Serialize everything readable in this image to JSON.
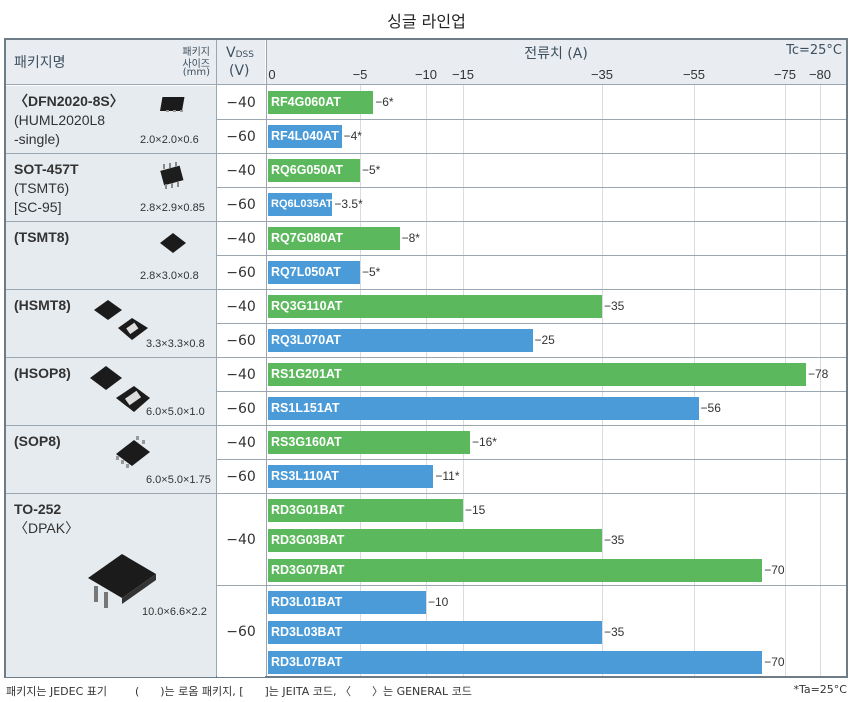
{
  "title": "싱글 라인업",
  "header": {
    "package_name": "패키지명",
    "package_size_line1": "패키지",
    "package_size_line2": "사이즈",
    "package_size_unit": "(mm)",
    "vdss_label": "V",
    "vdss_sub": "DSS",
    "vdss_unit": "(V)",
    "current_label": "전류치 (A)",
    "tc_note": "Tc=25°C"
  },
  "packages": [
    {
      "name_bold": "〈DFN2020-8S〉",
      "name_rest": [
        "(HUML2020L8",
        " -single)"
      ],
      "size": "2.0×2.0×0.6",
      "icon": "dfn-chip-icon"
    },
    {
      "name_bold": "SOT-457T",
      "name_rest": [
        "(TSMT6)",
        "[SC-95]"
      ],
      "size": "2.8×2.9×0.85",
      "icon": "sot-chip-icon"
    },
    {
      "name_bold": "(TSMT8)",
      "name_rest": [],
      "size": "2.8×3.0×0.8",
      "icon": "tsmt-chip-icon"
    },
    {
      "name_bold": "(HSMT8)",
      "name_rest": [],
      "size": "3.3×3.3×0.8",
      "icon": "hsmt-chip-icon"
    },
    {
      "name_bold": "(HSOP8)",
      "name_rest": [],
      "size": "6.0×5.0×1.0",
      "icon": "hsop-chip-icon"
    },
    {
      "name_bold": "(SOP8)",
      "name_rest": [],
      "size": "6.0×5.0×1.75",
      "icon": "sop-chip-icon"
    },
    {
      "name_bold": "TO-252",
      "name_rest": [
        "〈DPAK〉"
      ],
      "size": "10.0×6.6×2.2",
      "icon": "to252-chip-icon"
    }
  ],
  "vdss_values": [
    "−40",
    "−60",
    "−40",
    "−60",
    "−40",
    "−60",
    "−40",
    "−60",
    "−40",
    "−60",
    "−40",
    "−60",
    "−40",
    "−60"
  ],
  "footer": {
    "left": "패키지는 JEDEC 표기        (      )는 로옴 패키지, [      ]는 JEITA 코드, 〈      〉는 GENERAL 코드",
    "right": "*Ta=25°C"
  },
  "colors": {
    "green": "#5cb85c",
    "blue": "#4a9bd8"
  },
  "chart_data": {
    "type": "bar",
    "orientation": "horizontal",
    "xlabel": "전류치 (A)",
    "x_ticks": [
      "0",
      "−5",
      "−10",
      "−15",
      "−35",
      "−55",
      "−75",
      "−80"
    ],
    "x_tick_values": [
      0,
      -5,
      -10,
      -15,
      -35,
      -55,
      -75,
      -80
    ],
    "bars": [
      {
        "part": "RF4G060AT",
        "vdss": -40,
        "value": -6,
        "label": "−6*",
        "color": "green"
      },
      {
        "part": "RF4L040AT",
        "vdss": -60,
        "value": -4,
        "label": "−4*",
        "color": "blue"
      },
      {
        "part": "RQ6G050AT",
        "vdss": -40,
        "value": -5,
        "label": "−5*",
        "color": "green"
      },
      {
        "part": "RQ6L035AT",
        "vdss": -60,
        "value": -3.5,
        "label": "−3.5*",
        "color": "blue"
      },
      {
        "part": "RQ7G080AT",
        "vdss": -40,
        "value": -8,
        "label": "−8*",
        "color": "green"
      },
      {
        "part": "RQ7L050AT",
        "vdss": -60,
        "value": -5,
        "label": "−5*",
        "color": "blue"
      },
      {
        "part": "RQ3G110AT",
        "vdss": -40,
        "value": -35,
        "label": "−35",
        "color": "green"
      },
      {
        "part": "RQ3L070AT",
        "vdss": -60,
        "value": -25,
        "label": "−25",
        "color": "blue"
      },
      {
        "part": "RS1G201AT",
        "vdss": -40,
        "value": -78,
        "label": "−78",
        "color": "green"
      },
      {
        "part": "RS1L151AT",
        "vdss": -60,
        "value": -56,
        "label": "−56",
        "color": "blue"
      },
      {
        "part": "RS3G160AT",
        "vdss": -40,
        "value": -16,
        "label": "−16*",
        "color": "green"
      },
      {
        "part": "RS3L110AT",
        "vdss": -60,
        "value": -11,
        "label": "−11*",
        "color": "blue"
      },
      {
        "part": "RD3G01BAT",
        "vdss": -40,
        "value": -15,
        "label": "−15",
        "color": "green"
      },
      {
        "part": "RD3G03BAT",
        "vdss": -40,
        "value": -35,
        "label": "−35",
        "color": "green"
      },
      {
        "part": "RD3G07BAT",
        "vdss": -40,
        "value": -70,
        "label": "−70",
        "color": "green"
      },
      {
        "part": "RD3L01BAT",
        "vdss": -60,
        "value": -10,
        "label": "−10",
        "color": "blue"
      },
      {
        "part": "RD3L03BAT",
        "vdss": -60,
        "value": -35,
        "label": "−35",
        "color": "blue"
      },
      {
        "part": "RD3L07BAT",
        "vdss": -60,
        "value": -70,
        "label": "−70",
        "color": "blue"
      }
    ]
  }
}
